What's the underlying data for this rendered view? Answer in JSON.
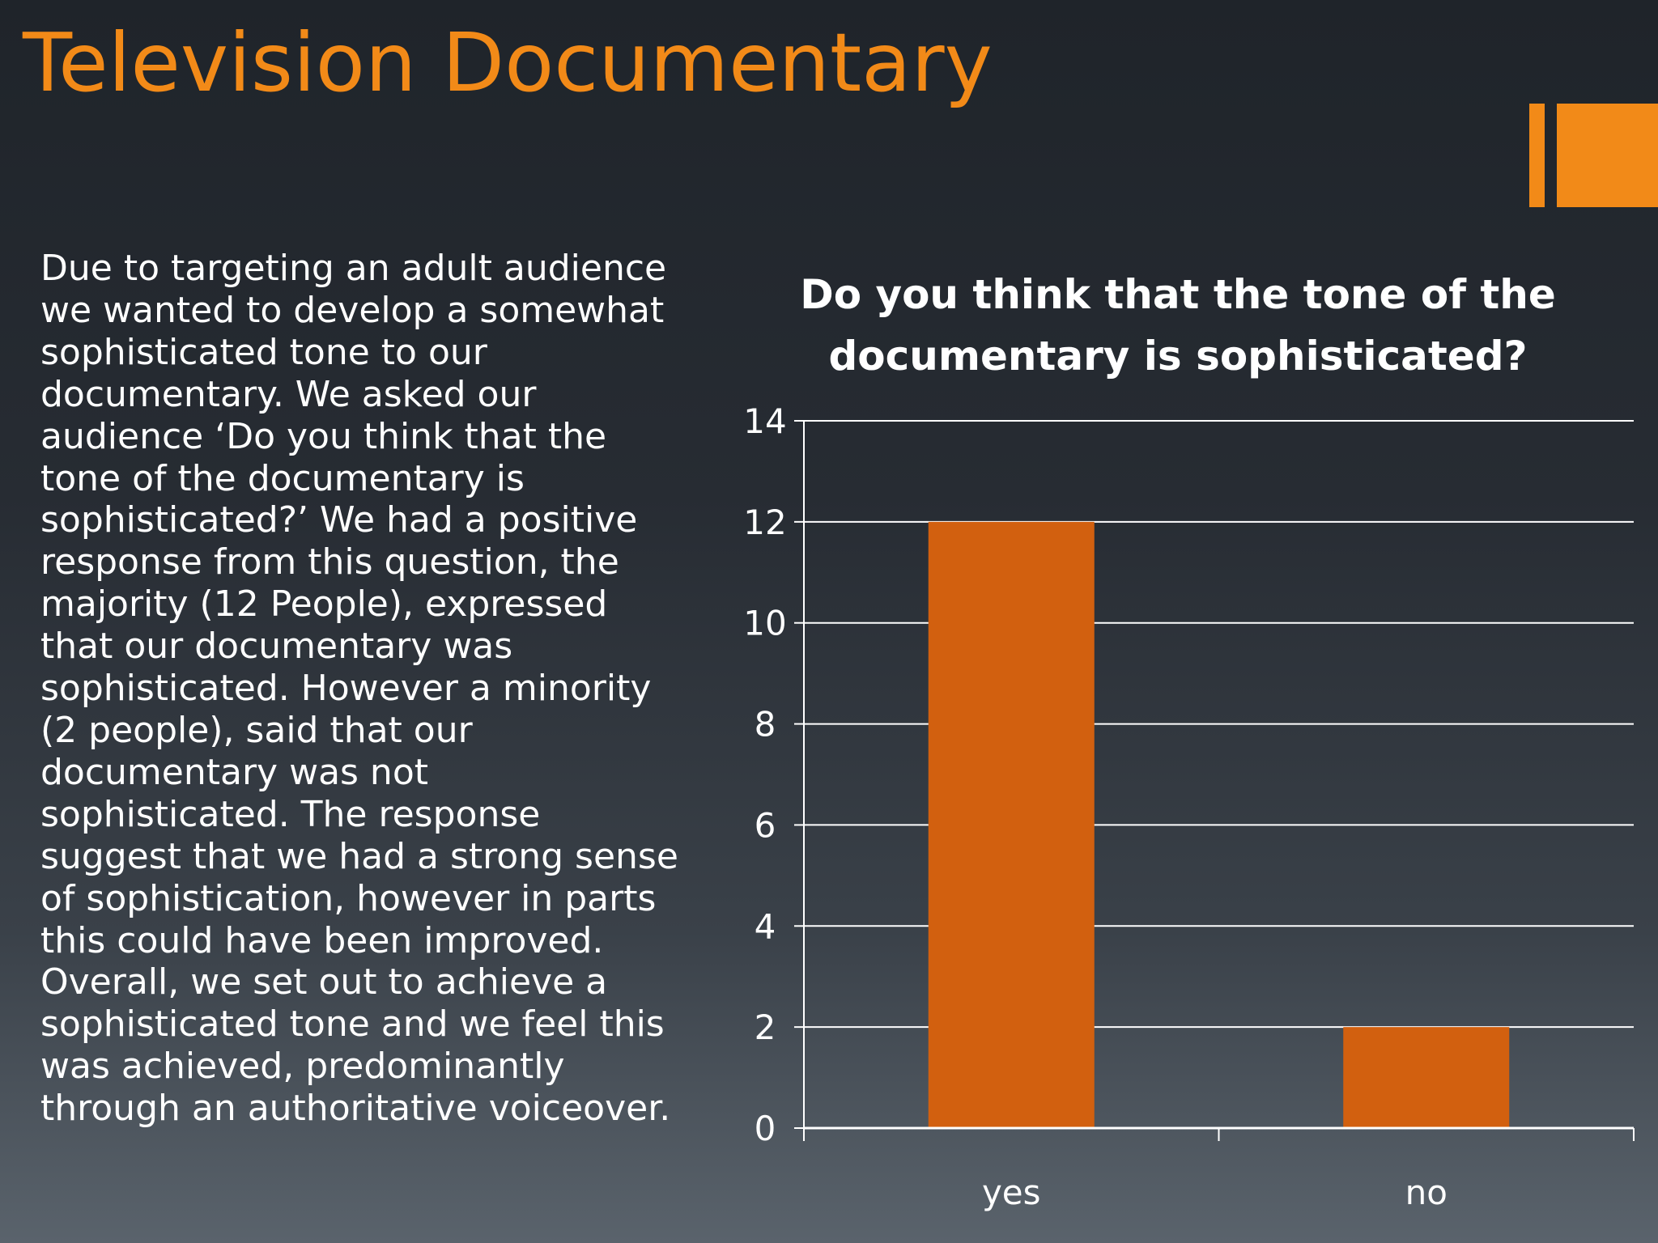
{
  "slide": {
    "title": "Television Documentary",
    "body": "Due to targeting an adult audience we wanted to develop  a somewhat sophisticated tone to our documentary. We asked our audience ‘Do you think that the tone of the documentary is sophisticated?’ We had a positive response from this question, the majority (12 People), expressed that our documentary was sophisticated. However a minority (2 people), said that our documentary was not sophisticated. The response suggest that we had a strong sense of sophistication, however in parts this could have been improved. Overall, we set out to achieve a sophisticated tone and we feel this was achieved, predominantly through an authoritative voiceover."
  },
  "colors": {
    "accent": "#f28a18",
    "bar": "#d2600f",
    "text": "#ffffff",
    "gridline": "#ffffff"
  },
  "chart_data": {
    "type": "bar",
    "title": "Do you think that the tone of the documentary is sophisticated?",
    "categories": [
      "yes",
      "no"
    ],
    "values": [
      12,
      2
    ],
    "ylim": [
      0,
      14
    ],
    "yticks": [
      0,
      2,
      4,
      6,
      8,
      10,
      12,
      14
    ],
    "xlabel": "",
    "ylabel": "",
    "grid": true,
    "legend": "none"
  }
}
